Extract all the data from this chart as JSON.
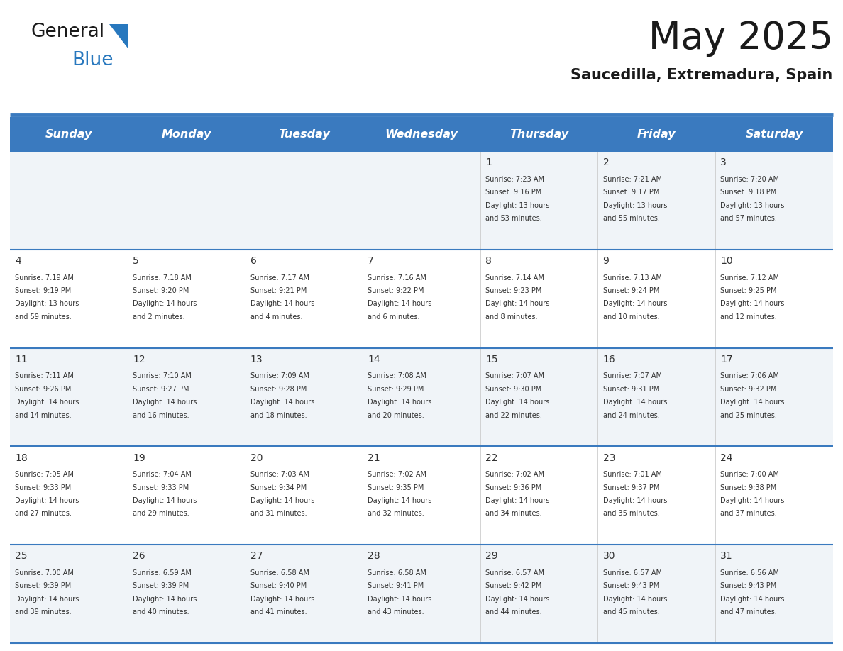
{
  "title": "May 2025",
  "subtitle": "Saucedilla, Extremadura, Spain",
  "days_of_week": [
    "Sunday",
    "Monday",
    "Tuesday",
    "Wednesday",
    "Thursday",
    "Friday",
    "Saturday"
  ],
  "header_bg_color": "#3a7abf",
  "header_text_color": "#ffffff",
  "cell_bg_even": "#f0f4f8",
  "cell_bg_odd": "#ffffff",
  "cell_border_color": "#3a7abf",
  "day_number_color": "#333333",
  "info_text_color": "#333333",
  "title_color": "#1a1a1a",
  "subtitle_color": "#1a1a1a",
  "logo_general_color": "#1a1a1a",
  "logo_blue_color": "#2878be",
  "logo_triangle_color": "#2878be",
  "calendar_data": [
    {
      "day": 1,
      "col": 4,
      "row": 0,
      "sunrise": "7:23 AM",
      "sunset": "9:16 PM",
      "daylight_hours": 13,
      "daylight_minutes": 53
    },
    {
      "day": 2,
      "col": 5,
      "row": 0,
      "sunrise": "7:21 AM",
      "sunset": "9:17 PM",
      "daylight_hours": 13,
      "daylight_minutes": 55
    },
    {
      "day": 3,
      "col": 6,
      "row": 0,
      "sunrise": "7:20 AM",
      "sunset": "9:18 PM",
      "daylight_hours": 13,
      "daylight_minutes": 57
    },
    {
      "day": 4,
      "col": 0,
      "row": 1,
      "sunrise": "7:19 AM",
      "sunset": "9:19 PM",
      "daylight_hours": 13,
      "daylight_minutes": 59
    },
    {
      "day": 5,
      "col": 1,
      "row": 1,
      "sunrise": "7:18 AM",
      "sunset": "9:20 PM",
      "daylight_hours": 14,
      "daylight_minutes": 2
    },
    {
      "day": 6,
      "col": 2,
      "row": 1,
      "sunrise": "7:17 AM",
      "sunset": "9:21 PM",
      "daylight_hours": 14,
      "daylight_minutes": 4
    },
    {
      "day": 7,
      "col": 3,
      "row": 1,
      "sunrise": "7:16 AM",
      "sunset": "9:22 PM",
      "daylight_hours": 14,
      "daylight_minutes": 6
    },
    {
      "day": 8,
      "col": 4,
      "row": 1,
      "sunrise": "7:14 AM",
      "sunset": "9:23 PM",
      "daylight_hours": 14,
      "daylight_minutes": 8
    },
    {
      "day": 9,
      "col": 5,
      "row": 1,
      "sunrise": "7:13 AM",
      "sunset": "9:24 PM",
      "daylight_hours": 14,
      "daylight_minutes": 10
    },
    {
      "day": 10,
      "col": 6,
      "row": 1,
      "sunrise": "7:12 AM",
      "sunset": "9:25 PM",
      "daylight_hours": 14,
      "daylight_minutes": 12
    },
    {
      "day": 11,
      "col": 0,
      "row": 2,
      "sunrise": "7:11 AM",
      "sunset": "9:26 PM",
      "daylight_hours": 14,
      "daylight_minutes": 14
    },
    {
      "day": 12,
      "col": 1,
      "row": 2,
      "sunrise": "7:10 AM",
      "sunset": "9:27 PM",
      "daylight_hours": 14,
      "daylight_minutes": 16
    },
    {
      "day": 13,
      "col": 2,
      "row": 2,
      "sunrise": "7:09 AM",
      "sunset": "9:28 PM",
      "daylight_hours": 14,
      "daylight_minutes": 18
    },
    {
      "day": 14,
      "col": 3,
      "row": 2,
      "sunrise": "7:08 AM",
      "sunset": "9:29 PM",
      "daylight_hours": 14,
      "daylight_minutes": 20
    },
    {
      "day": 15,
      "col": 4,
      "row": 2,
      "sunrise": "7:07 AM",
      "sunset": "9:30 PM",
      "daylight_hours": 14,
      "daylight_minutes": 22
    },
    {
      "day": 16,
      "col": 5,
      "row": 2,
      "sunrise": "7:07 AM",
      "sunset": "9:31 PM",
      "daylight_hours": 14,
      "daylight_minutes": 24
    },
    {
      "day": 17,
      "col": 6,
      "row": 2,
      "sunrise": "7:06 AM",
      "sunset": "9:32 PM",
      "daylight_hours": 14,
      "daylight_minutes": 25
    },
    {
      "day": 18,
      "col": 0,
      "row": 3,
      "sunrise": "7:05 AM",
      "sunset": "9:33 PM",
      "daylight_hours": 14,
      "daylight_minutes": 27
    },
    {
      "day": 19,
      "col": 1,
      "row": 3,
      "sunrise": "7:04 AM",
      "sunset": "9:33 PM",
      "daylight_hours": 14,
      "daylight_minutes": 29
    },
    {
      "day": 20,
      "col": 2,
      "row": 3,
      "sunrise": "7:03 AM",
      "sunset": "9:34 PM",
      "daylight_hours": 14,
      "daylight_minutes": 31
    },
    {
      "day": 21,
      "col": 3,
      "row": 3,
      "sunrise": "7:02 AM",
      "sunset": "9:35 PM",
      "daylight_hours": 14,
      "daylight_minutes": 32
    },
    {
      "day": 22,
      "col": 4,
      "row": 3,
      "sunrise": "7:02 AM",
      "sunset": "9:36 PM",
      "daylight_hours": 14,
      "daylight_minutes": 34
    },
    {
      "day": 23,
      "col": 5,
      "row": 3,
      "sunrise": "7:01 AM",
      "sunset": "9:37 PM",
      "daylight_hours": 14,
      "daylight_minutes": 35
    },
    {
      "day": 24,
      "col": 6,
      "row": 3,
      "sunrise": "7:00 AM",
      "sunset": "9:38 PM",
      "daylight_hours": 14,
      "daylight_minutes": 37
    },
    {
      "day": 25,
      "col": 0,
      "row": 4,
      "sunrise": "7:00 AM",
      "sunset": "9:39 PM",
      "daylight_hours": 14,
      "daylight_minutes": 39
    },
    {
      "day": 26,
      "col": 1,
      "row": 4,
      "sunrise": "6:59 AM",
      "sunset": "9:39 PM",
      "daylight_hours": 14,
      "daylight_minutes": 40
    },
    {
      "day": 27,
      "col": 2,
      "row": 4,
      "sunrise": "6:58 AM",
      "sunset": "9:40 PM",
      "daylight_hours": 14,
      "daylight_minutes": 41
    },
    {
      "day": 28,
      "col": 3,
      "row": 4,
      "sunrise": "6:58 AM",
      "sunset": "9:41 PM",
      "daylight_hours": 14,
      "daylight_minutes": 43
    },
    {
      "day": 29,
      "col": 4,
      "row": 4,
      "sunrise": "6:57 AM",
      "sunset": "9:42 PM",
      "daylight_hours": 14,
      "daylight_minutes": 44
    },
    {
      "day": 30,
      "col": 5,
      "row": 4,
      "sunrise": "6:57 AM",
      "sunset": "9:43 PM",
      "daylight_hours": 14,
      "daylight_minutes": 45
    },
    {
      "day": 31,
      "col": 6,
      "row": 4,
      "sunrise": "6:56 AM",
      "sunset": "9:43 PM",
      "daylight_hours": 14,
      "daylight_minutes": 47
    }
  ]
}
